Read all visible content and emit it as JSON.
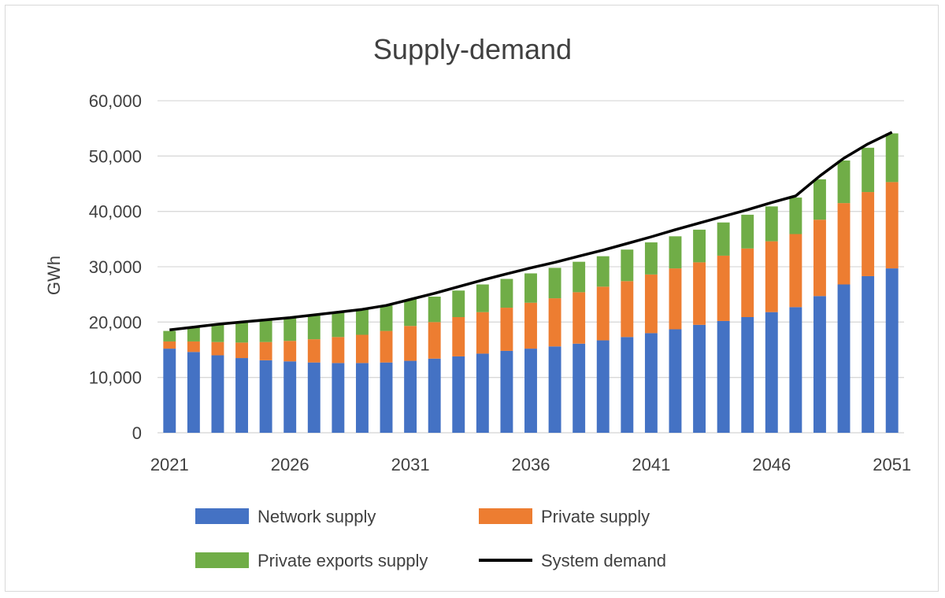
{
  "chart_data": {
    "type": "bar",
    "stacked": true,
    "title": "Supply-demand",
    "xlabel": "",
    "ylabel": "GWh",
    "ylim": [
      0,
      60000
    ],
    "yticks": [
      "0",
      "10,000",
      "20,000",
      "30,000",
      "40,000",
      "50,000",
      "60,000"
    ],
    "xtick_labels": [
      "2021",
      "2026",
      "2031",
      "2036",
      "2041",
      "2046",
      "2051"
    ],
    "categories": [
      "2021",
      "2022",
      "2023",
      "2024",
      "2025",
      "2026",
      "2027",
      "2028",
      "2029",
      "2030",
      "2031",
      "2032",
      "2033",
      "2034",
      "2035",
      "2036",
      "2037",
      "2038",
      "2039",
      "2040",
      "2041",
      "2042",
      "2043",
      "2044",
      "2045",
      "2046",
      "2047",
      "2048",
      "2049",
      "2050",
      "2051"
    ],
    "series": [
      {
        "name": "Network supply",
        "color": "#4472c4",
        "values": [
          15200,
          14600,
          14000,
          13500,
          13100,
          12900,
          12700,
          12600,
          12600,
          12700,
          13000,
          13400,
          13800,
          14300,
          14800,
          15200,
          15600,
          16100,
          16700,
          17300,
          18000,
          18700,
          19500,
          20200,
          20900,
          21800,
          22700,
          24700,
          26800,
          28300,
          29700
        ]
      },
      {
        "name": "Private supply",
        "color": "#ed7d31",
        "values": [
          1300,
          1900,
          2400,
          2800,
          3300,
          3700,
          4200,
          4700,
          5100,
          5700,
          6300,
          6600,
          7100,
          7500,
          7800,
          8300,
          8700,
          9300,
          9700,
          10100,
          10600,
          11000,
          11300,
          11800,
          12400,
          12800,
          13200,
          13800,
          14700,
          15200,
          15600
        ]
      },
      {
        "name": "Private exports supply",
        "color": "#70ad47",
        "values": [
          1900,
          2600,
          3100,
          3600,
          3900,
          4200,
          4400,
          4400,
          4600,
          4600,
          4800,
          4600,
          4800,
          5000,
          5200,
          5300,
          5500,
          5500,
          5500,
          5700,
          5800,
          5800,
          5900,
          6000,
          6100,
          6300,
          6600,
          7300,
          7700,
          8000,
          8800
        ]
      }
    ],
    "line_series": {
      "name": "System demand",
      "color": "#000000",
      "values": [
        18600,
        19100,
        19600,
        20000,
        20400,
        20800,
        21300,
        21800,
        22300,
        23000,
        24100,
        25200,
        26400,
        27600,
        28700,
        29800,
        30800,
        31900,
        33000,
        34200,
        35400,
        36700,
        37900,
        39100,
        40300,
        41600,
        42800,
        46400,
        49600,
        52200,
        54300
      ]
    },
    "legend": [
      {
        "name": "Network supply",
        "kind": "box",
        "color": "#4472c4"
      },
      {
        "name": "Private supply",
        "kind": "box",
        "color": "#ed7d31"
      },
      {
        "name": "Private exports supply",
        "kind": "box",
        "color": "#70ad47"
      },
      {
        "name": "System demand",
        "kind": "line",
        "color": "#000000"
      }
    ],
    "legend_position": "bottom",
    "grid": true
  }
}
